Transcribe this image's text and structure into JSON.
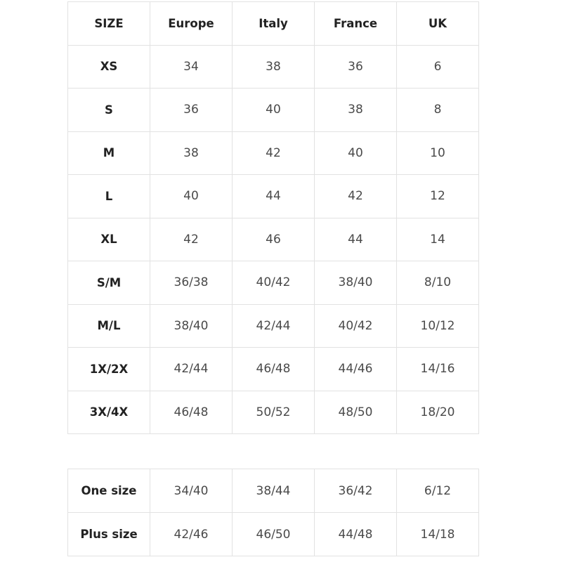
{
  "size_chart": {
    "headers": [
      "SIZE",
      "Europe",
      "Italy",
      "France",
      "UK"
    ],
    "rows": [
      [
        "XS",
        "34",
        "38",
        "36",
        "6"
      ],
      [
        "S",
        "36",
        "40",
        "38",
        "8"
      ],
      [
        "M",
        "38",
        "42",
        "40",
        "10"
      ],
      [
        "L",
        "40",
        "44",
        "42",
        "12"
      ],
      [
        "XL",
        "42",
        "46",
        "44",
        "14"
      ],
      [
        "S/M",
        "36/38",
        "40/42",
        "38/40",
        "8/10"
      ],
      [
        "M/L",
        "38/40",
        "42/44",
        "40/42",
        "10/12"
      ],
      [
        "1X/2X",
        "42/44",
        "46/48",
        "44/46",
        "14/16"
      ],
      [
        "3X/4X",
        "46/48",
        "50/52",
        "48/50",
        "18/20"
      ]
    ]
  },
  "special_sizes": {
    "rows": [
      [
        "One size",
        "34/40",
        "38/44",
        "36/42",
        "6/12"
      ],
      [
        "Plus size",
        "42/46",
        "46/50",
        "44/48",
        "14/18"
      ]
    ]
  }
}
